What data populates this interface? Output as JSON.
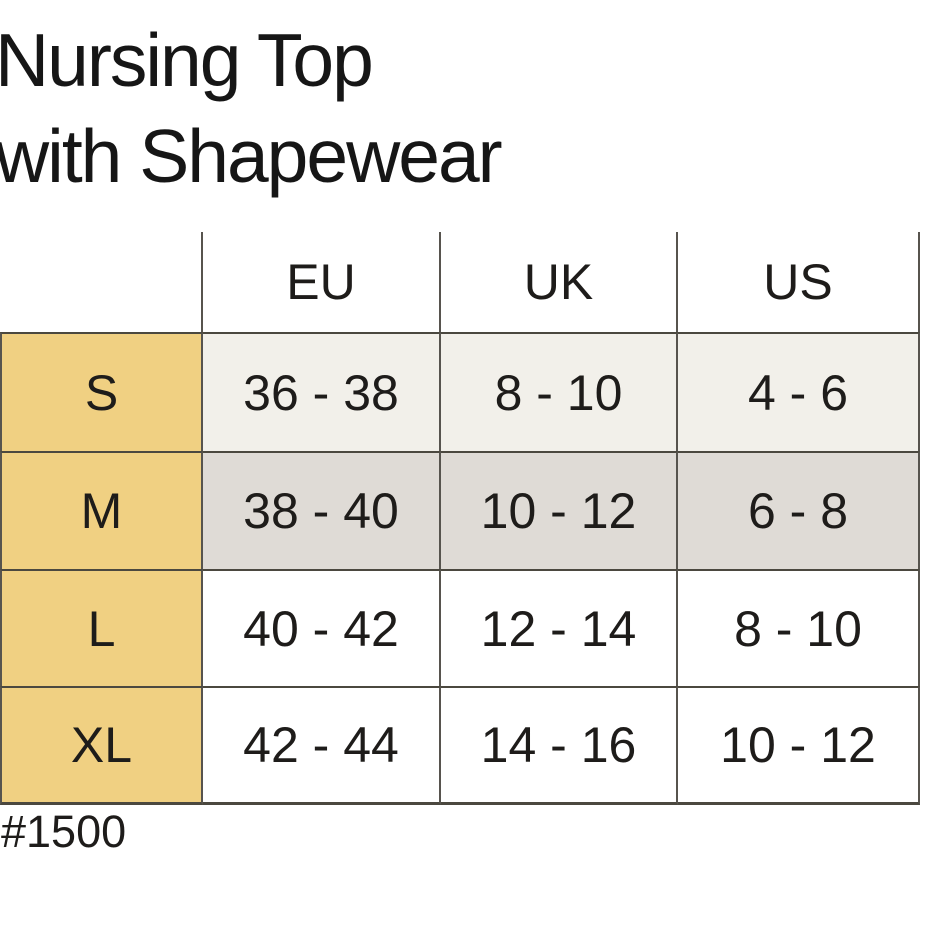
{
  "title": {
    "line1": "Nursing Top",
    "line2": "with Shapewear"
  },
  "table": {
    "columns": {
      "size": "",
      "eu": "EU",
      "uk": "UK",
      "us": "US"
    },
    "rows": [
      {
        "label": "S",
        "eu": "36 - 38",
        "uk": "8 - 10",
        "us": "4 - 6"
      },
      {
        "label": "M",
        "eu": "38 - 40",
        "uk": "10 - 12",
        "us": "6 - 8"
      },
      {
        "label": "L",
        "eu": "40 - 42",
        "uk": "12 - 14",
        "us": "8 - 10"
      },
      {
        "label": "XL",
        "eu": "42 - 44",
        "uk": "14 - 16",
        "us": "10 - 12"
      }
    ]
  },
  "footer": {
    "product_code": "#1500"
  },
  "colors": {
    "size_column_yellow": "#f0d082",
    "row_s_background": "#f2f0ea",
    "row_m_background": "#dfdbd6",
    "row_l_background": "#ffffff",
    "row_xl_background": "#ffffff",
    "border": "#57544e",
    "text": "#1e1c1a"
  },
  "chart_data": {
    "type": "table",
    "title": "Nursing Top with Shapewear",
    "columns": [
      "",
      "EU",
      "UK",
      "US"
    ],
    "rows": [
      [
        "S",
        "36 - 38",
        "8 - 10",
        "4 - 6"
      ],
      [
        "M",
        "38 - 40",
        "10 - 12",
        "6 - 8"
      ],
      [
        "L",
        "40 - 42",
        "12 - 14",
        "8 - 10"
      ],
      [
        "XL",
        "42 - 44",
        "14 - 16",
        "10 - 12"
      ]
    ],
    "footnote": "#1500"
  }
}
